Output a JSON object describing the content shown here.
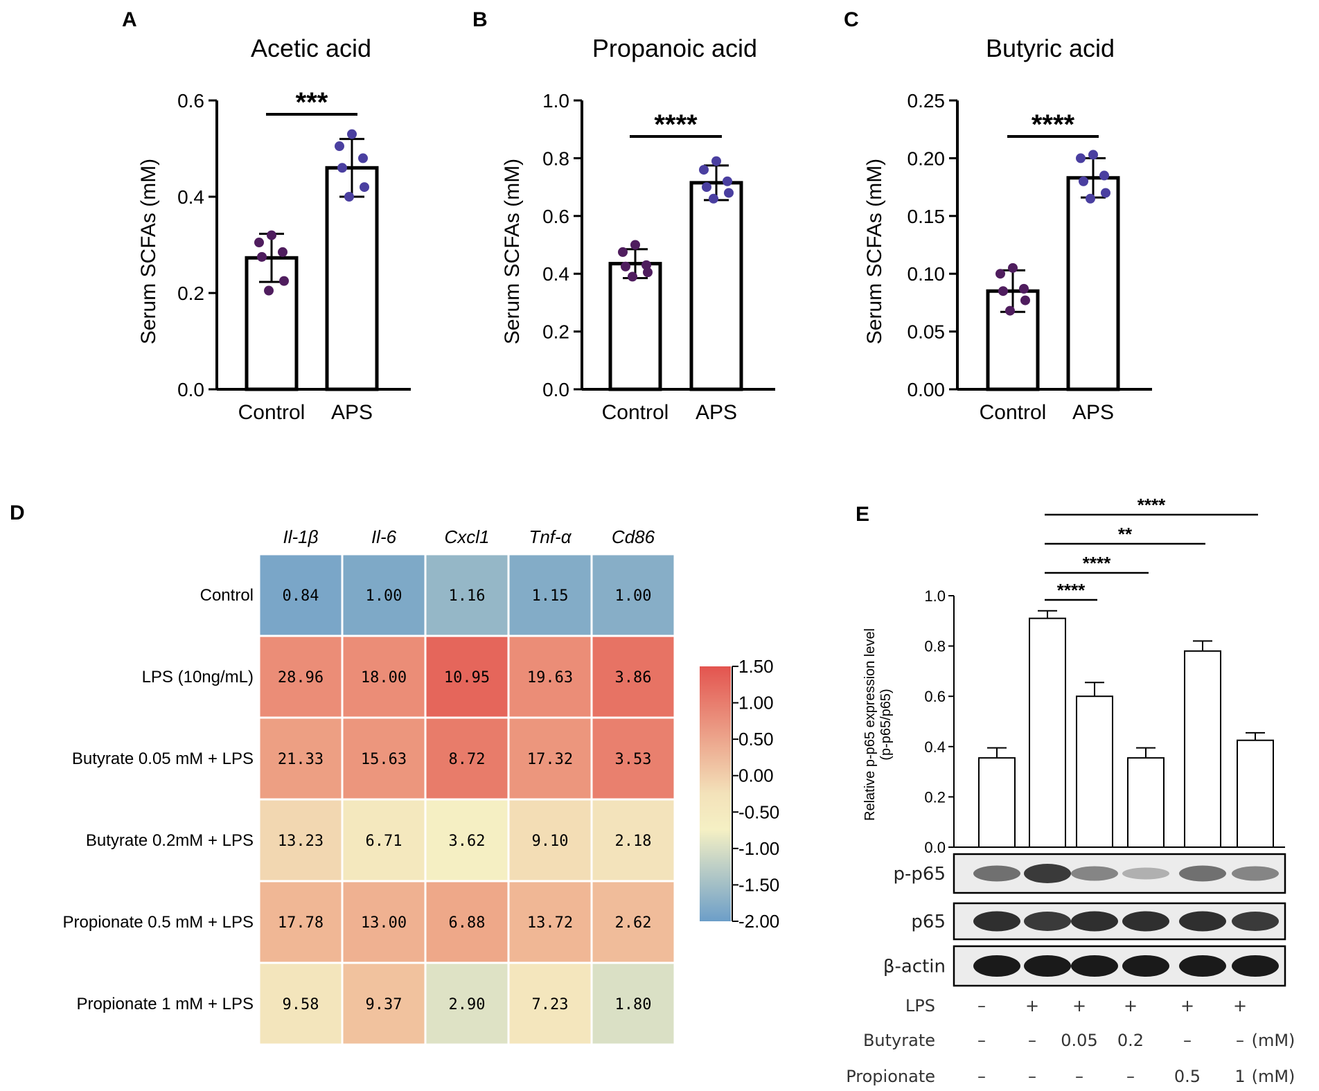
{
  "chart_data": [
    {
      "panel": "A",
      "type": "bar",
      "title": "Acetic acid",
      "ylabel": "Serum SCFAs (mM)",
      "categories": [
        "Control",
        "APS"
      ],
      "values": [
        0.273,
        0.46
      ],
      "errors": [
        0.05,
        0.06
      ],
      "points": [
        [
          0.32,
          0.305,
          0.285,
          0.275,
          0.225,
          0.205
        ],
        [
          0.53,
          0.505,
          0.48,
          0.46,
          0.42,
          0.4
        ]
      ],
      "ylim": [
        0,
        0.6
      ],
      "yticks": [
        "0.0",
        "0.2",
        "0.4",
        "0.6"
      ],
      "significance": "***"
    },
    {
      "panel": "B",
      "type": "bar",
      "title": "Propanoic acid",
      "ylabel": "Serum SCFAs (mM)",
      "categories": [
        "Control",
        "APS"
      ],
      "values": [
        0.435,
        0.715
      ],
      "errors": [
        0.05,
        0.06
      ],
      "points": [
        [
          0.5,
          0.475,
          0.43,
          0.425,
          0.405,
          0.39
        ],
        [
          0.79,
          0.76,
          0.72,
          0.7,
          0.68,
          0.66
        ]
      ],
      "ylim": [
        0,
        1.0
      ],
      "yticks": [
        "0.0",
        "0.2",
        "0.4",
        "0.6",
        "0.8",
        "1.0"
      ],
      "significance": "****"
    },
    {
      "panel": "C",
      "type": "bar",
      "title": "Butyric acid",
      "ylabel": "Serum SCFAs (mM)",
      "categories": [
        "Control",
        "APS"
      ],
      "values": [
        0.085,
        0.183
      ],
      "errors": [
        0.018,
        0.017
      ],
      "points": [
        [
          0.105,
          0.1,
          0.087,
          0.085,
          0.077,
          0.068
        ],
        [
          0.203,
          0.2,
          0.185,
          0.18,
          0.17,
          0.165
        ]
      ],
      "ylim": [
        0,
        0.25
      ],
      "yticks": [
        "0.00",
        "0.05",
        "0.10",
        "0.15",
        "0.20",
        "0.25"
      ],
      "significance": "****"
    },
    {
      "panel": "D",
      "type": "heatmap",
      "columns": [
        "Il-1β",
        "Il-6",
        "Cxcl1",
        "Tnf-α",
        "Cd86"
      ],
      "rows": [
        "Control",
        "LPS (10ng/mL)",
        "Butyrate 0.05 mM + LPS",
        "Butyrate 0.2mM + LPS",
        "Propionate 0.5 mM + LPS",
        "Propionate 1 mM + LPS"
      ],
      "values": [
        [
          "0.84",
          "1.00",
          "1.16",
          "1.15",
          "1.00"
        ],
        [
          "28.96",
          "18.00",
          "10.95",
          "19.63",
          "3.86"
        ],
        [
          "21.33",
          "15.63",
          "8.72",
          "17.32",
          "3.53"
        ],
        [
          "13.23",
          "6.71",
          "3.62",
          "9.10",
          "2.18"
        ],
        [
          "17.78",
          "13.00",
          "6.88",
          "13.72",
          "2.62"
        ],
        [
          "9.58",
          "9.37",
          "2.90",
          "7.23",
          "1.80"
        ]
      ],
      "scaled": [
        [
          -1.85,
          -1.8,
          -1.55,
          -1.75,
          -1.7
        ],
        [
          0.85,
          0.85,
          1.3,
          0.85,
          1.15
        ],
        [
          0.65,
          0.75,
          1.05,
          0.75,
          1.0
        ],
        [
          0.1,
          -0.2,
          -0.45,
          0.05,
          -0.05
        ],
        [
          0.4,
          0.45,
          0.55,
          0.4,
          0.35
        ],
        [
          -0.1,
          0.3,
          -0.75,
          -0.15,
          -0.8
        ]
      ],
      "colorbar": {
        "min": -2.0,
        "max": 1.5,
        "ticks": [
          "1.50",
          "1.00",
          "0.50",
          "0.00",
          "-0.50",
          "-1.00",
          "-1.50",
          "-2.00"
        ],
        "colors": [
          "#6c9ec8",
          "#f5f0c4",
          "#e3544f"
        ]
      }
    },
    {
      "panel": "E",
      "type": "bar",
      "ylabel_line1": "Relative p-p65 expression level",
      "ylabel_line2": "(p-p65/p65)",
      "values": [
        0.355,
        0.91,
        0.6,
        0.355,
        0.78,
        0.425
      ],
      "errors": [
        0.04,
        0.03,
        0.055,
        0.04,
        0.04,
        0.03
      ],
      "ylim": [
        0,
        1.0
      ],
      "yticks": [
        "0.0",
        "0.2",
        "0.4",
        "0.6",
        "0.8",
        "1.0"
      ],
      "comparisons": [
        {
          "from": 1,
          "to": 2,
          "label": "****"
        },
        {
          "from": 1,
          "to": 3,
          "label": "****"
        },
        {
          "from": 1,
          "to": 4,
          "label": "**"
        },
        {
          "from": 1,
          "to": 5,
          "label": "****"
        }
      ],
      "blots": [
        "p-p65",
        "p65",
        "β-actin"
      ],
      "blot_intensity": [
        [
          0.55,
          0.8,
          0.45,
          0.25,
          0.55,
          0.45
        ],
        [
          0.85,
          0.8,
          0.85,
          0.85,
          0.85,
          0.8
        ],
        [
          0.95,
          0.95,
          0.95,
          0.95,
          0.95,
          0.95
        ]
      ],
      "conditions": [
        {
          "name": "LPS",
          "values": [
            "–",
            "+",
            "+",
            "+",
            "+",
            "+"
          ],
          "unit": ""
        },
        {
          "name": "Butyrate",
          "values": [
            "–",
            "–",
            "0.05",
            "0.2",
            "–",
            "–"
          ],
          "unit": "(mM)"
        },
        {
          "name": "Propionate",
          "values": [
            "–",
            "–",
            "–",
            "–",
            "0.5",
            "1"
          ],
          "unit": "(mM)"
        }
      ]
    }
  ],
  "panel_labels": {
    "A": "A",
    "B": "B",
    "C": "C",
    "D": "D",
    "E": "E"
  }
}
